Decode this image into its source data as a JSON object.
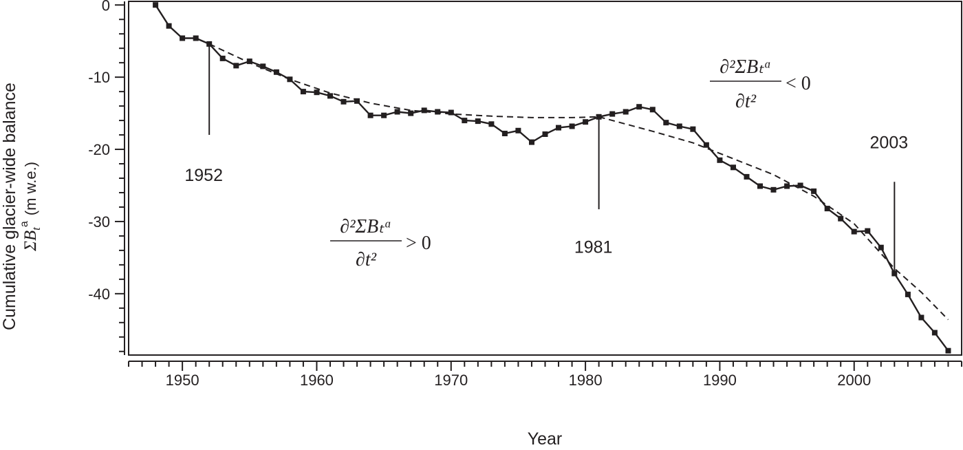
{
  "chart_data": {
    "type": "line",
    "xlabel": "Year",
    "ylabel_line1": "Cumulative glacier-wide balance",
    "ylabel_symbol": "ΣB",
    "ylabel_sub": "t",
    "ylabel_sup": "a",
    "ylabel_unit": "(m w.e.)",
    "xlim": [
      1946,
      2008
    ],
    "ylim": [
      -48.5,
      0.5
    ],
    "xticks_major": [
      1950,
      1960,
      1970,
      1980,
      1990,
      2000
    ],
    "xtick_labels": [
      "1950",
      "1960",
      "1970",
      "1980",
      "1990",
      "2000"
    ],
    "yticks_major": [
      0,
      -10,
      -20,
      -30,
      -40
    ],
    "ytick_labels": [
      "0",
      "-10",
      "-20",
      "-30",
      "-40"
    ],
    "grid": false,
    "series": [
      {
        "style": "solid-with-square-markers",
        "color": "#231f20",
        "points": [
          [
            1948,
            0.0
          ],
          [
            1949,
            -2.9
          ],
          [
            1950,
            -4.6
          ],
          [
            1951,
            -4.6
          ],
          [
            1952,
            -5.4
          ],
          [
            1953,
            -7.4
          ],
          [
            1954,
            -8.4
          ],
          [
            1955,
            -7.8
          ],
          [
            1956,
            -8.5
          ],
          [
            1957,
            -9.3
          ],
          [
            1958,
            -10.3
          ],
          [
            1959,
            -12.0
          ],
          [
            1960,
            -12.1
          ],
          [
            1961,
            -12.6
          ],
          [
            1962,
            -13.4
          ],
          [
            1963,
            -13.3
          ],
          [
            1964,
            -15.3
          ],
          [
            1965,
            -15.3
          ],
          [
            1966,
            -14.8
          ],
          [
            1967,
            -15.0
          ],
          [
            1968,
            -14.6
          ],
          [
            1969,
            -14.8
          ],
          [
            1970,
            -14.9
          ],
          [
            1971,
            -16.0
          ],
          [
            1972,
            -16.1
          ],
          [
            1973,
            -16.5
          ],
          [
            1974,
            -17.8
          ],
          [
            1975,
            -17.4
          ],
          [
            1976,
            -19.0
          ],
          [
            1977,
            -17.9
          ],
          [
            1978,
            -17.0
          ],
          [
            1979,
            -16.8
          ],
          [
            1980,
            -16.2
          ],
          [
            1981,
            -15.5
          ],
          [
            1982,
            -15.1
          ],
          [
            1983,
            -14.8
          ],
          [
            1984,
            -14.1
          ],
          [
            1985,
            -14.5
          ],
          [
            1986,
            -16.3
          ],
          [
            1987,
            -16.8
          ],
          [
            1988,
            -17.2
          ],
          [
            1989,
            -19.4
          ],
          [
            1990,
            -21.5
          ],
          [
            1991,
            -22.5
          ],
          [
            1992,
            -23.8
          ],
          [
            1993,
            -25.1
          ],
          [
            1994,
            -25.6
          ],
          [
            1995,
            -25.1
          ],
          [
            1996,
            -25.0
          ],
          [
            1997,
            -25.8
          ],
          [
            1998,
            -28.2
          ],
          [
            1999,
            -29.6
          ],
          [
            2000,
            -31.4
          ],
          [
            2001,
            -31.3
          ],
          [
            2002,
            -33.6
          ],
          [
            2003,
            -37.2
          ],
          [
            2004,
            -40.1
          ],
          [
            2005,
            -43.3
          ],
          [
            2006,
            -45.4
          ],
          [
            2007,
            -47.9
          ]
        ]
      },
      {
        "style": "dashed-fit-1952-1981",
        "color": "#231f20",
        "points": [
          [
            1952,
            -5.4
          ],
          [
            1955,
            -8.0
          ],
          [
            1958,
            -10.3
          ],
          [
            1961,
            -12.2
          ],
          [
            1964,
            -13.6
          ],
          [
            1967,
            -14.6
          ],
          [
            1970,
            -15.1
          ],
          [
            1973,
            -15.4
          ],
          [
            1976,
            -15.6
          ],
          [
            1979,
            -15.6
          ],
          [
            1981,
            -15.5
          ]
        ]
      },
      {
        "style": "dashed-fit-1981-2007",
        "color": "#231f20",
        "points": [
          [
            1981,
            -15.5
          ],
          [
            1985,
            -17.5
          ],
          [
            1988,
            -19.1
          ],
          [
            1991,
            -21.3
          ],
          [
            1994,
            -23.5
          ],
          [
            1997,
            -26.5
          ],
          [
            2000,
            -30.3
          ],
          [
            2003,
            -36.5
          ],
          [
            2005,
            -39.8
          ],
          [
            2007,
            -43.6
          ]
        ]
      }
    ],
    "annotations": [
      {
        "year": 1952,
        "label": "1952",
        "line_to": -18.0,
        "label_y": -23.5
      },
      {
        "year": 1981,
        "label": "1981",
        "line_to": -28.3,
        "label_y": -33.5
      },
      {
        "year": 2003,
        "label": "2003",
        "line_to": -24.5,
        "label_y": -19.0
      }
    ],
    "equations": [
      {
        "numerator": "∂²ΣBₜᵅ",
        "denominator": "∂t²",
        "relation": "> 0"
      },
      {
        "numerator": "∂²ΣBₜᵅ",
        "denominator": "∂t²",
        "relation": "< 0"
      }
    ]
  }
}
